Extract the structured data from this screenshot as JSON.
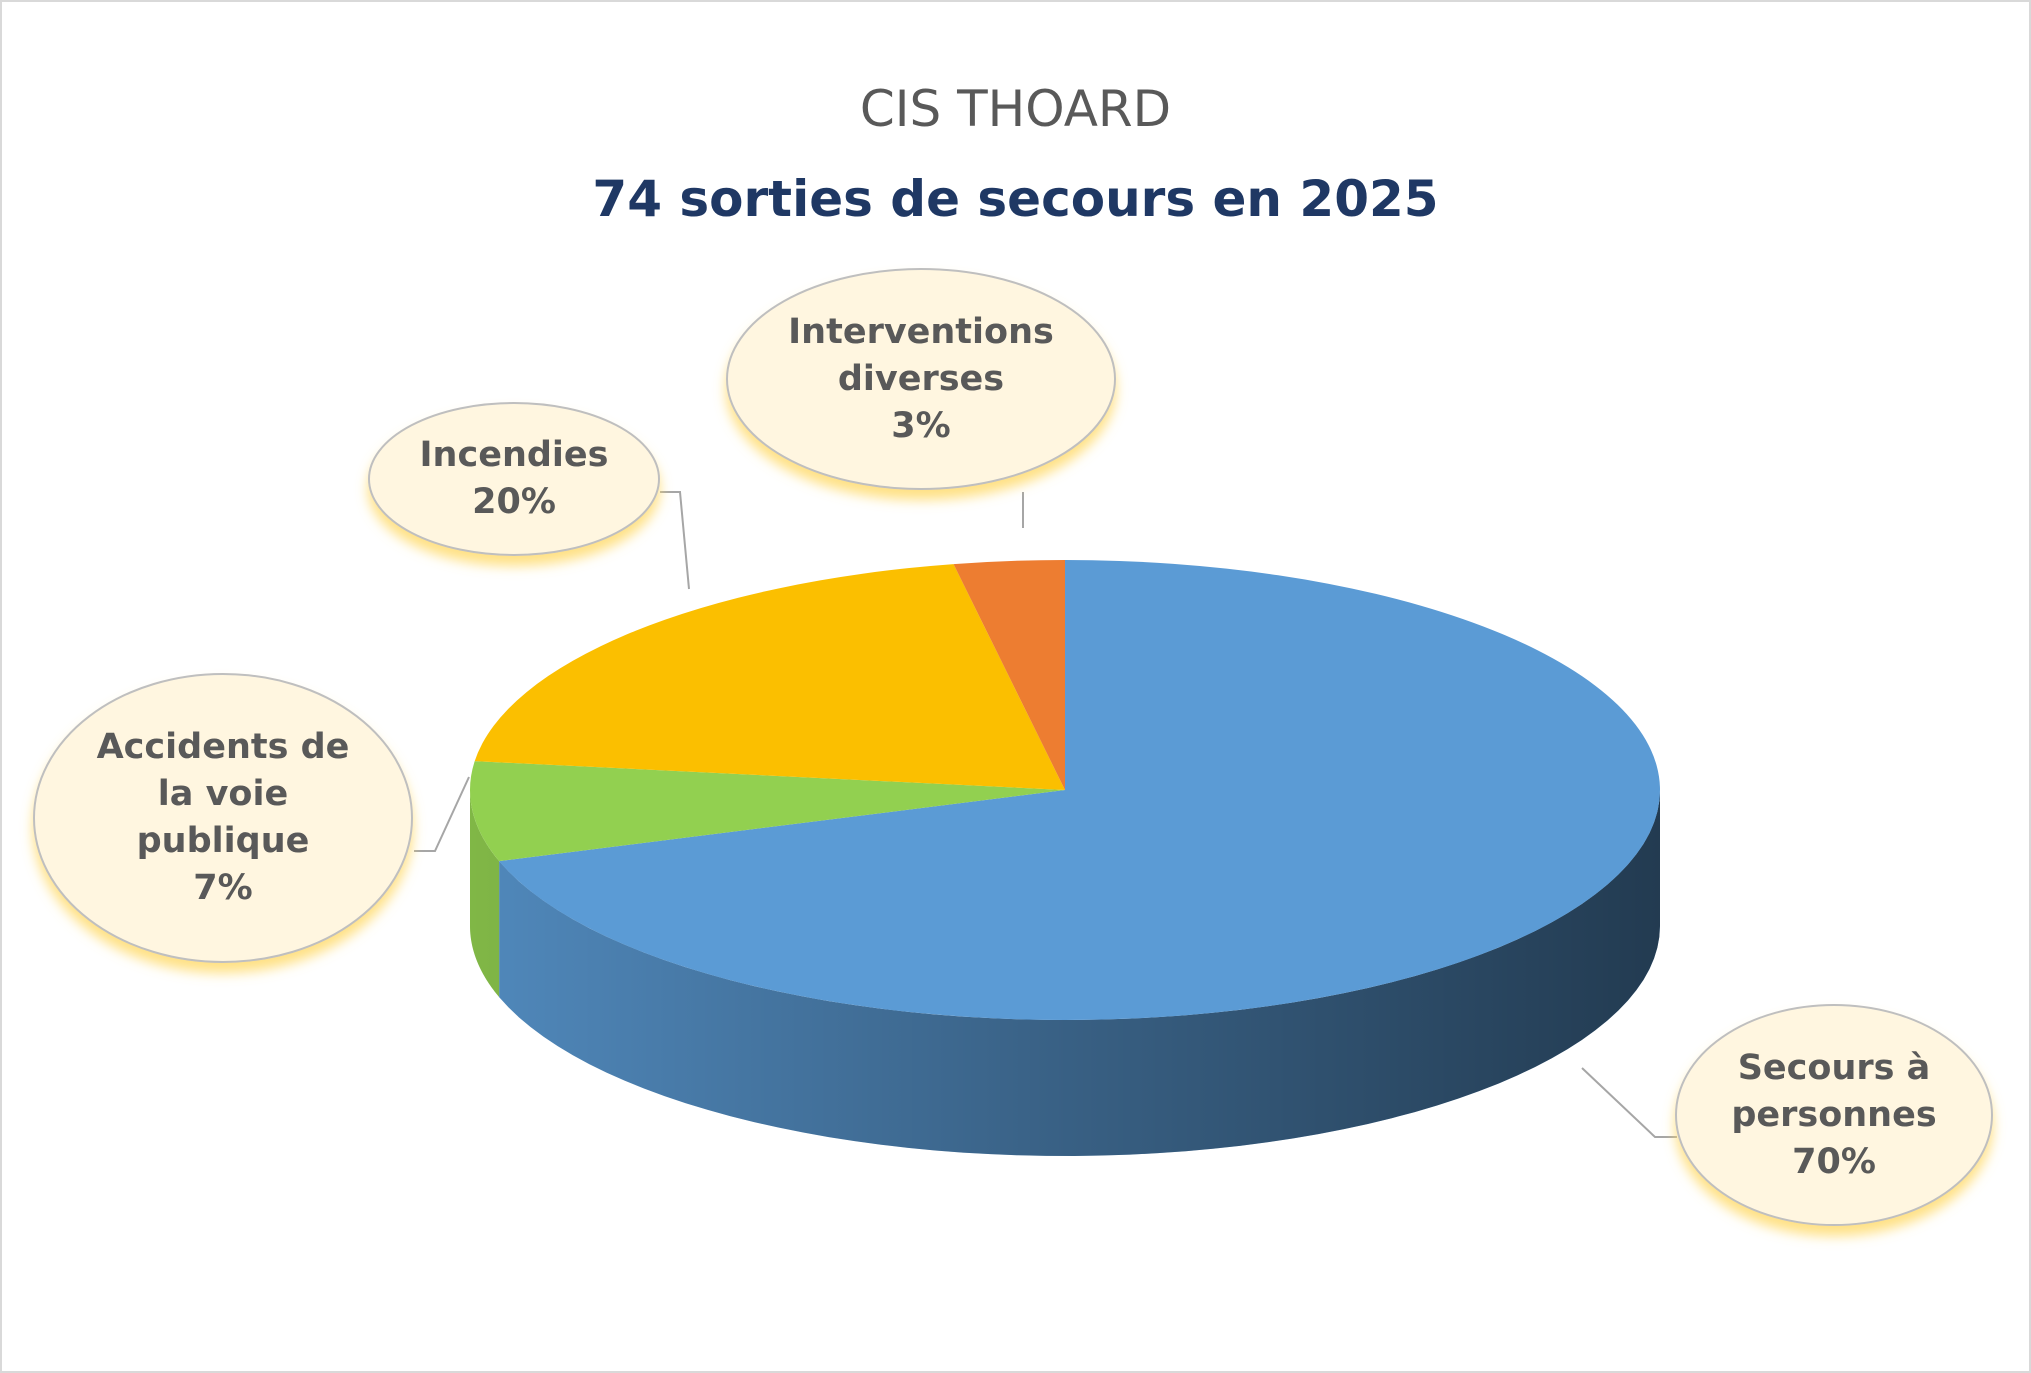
{
  "chart_data": {
    "type": "pie",
    "title": "CIS THOARD",
    "subtitle": "74 sorties de secours en 2025",
    "categories": [
      "Secours à personnes",
      "Accidents de la voie publique",
      "Incendies",
      "Interventions diverses"
    ],
    "values": [
      70,
      7,
      20,
      3
    ],
    "value_labels": [
      "70%",
      "7%",
      "20%",
      "3%"
    ],
    "colors": [
      "#5b9bd5",
      "#92d050",
      "#fbbf00",
      "#ed7d31"
    ]
  }
}
